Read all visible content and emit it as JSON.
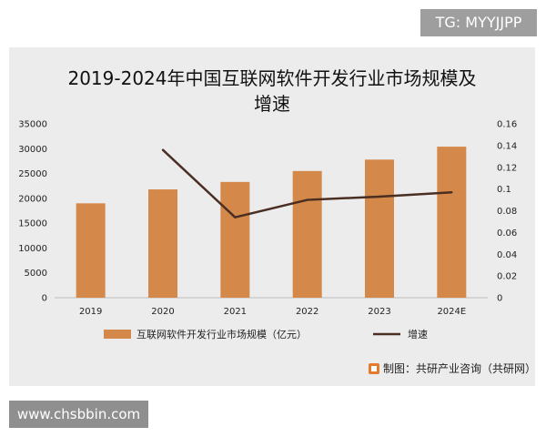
{
  "watermark_top": "TG: MYYJJPP",
  "watermark_bottom": "www.chsbbin.com",
  "source": "制图：共研产业咨询（共研网）",
  "colors": {
    "bar": "#d4894a",
    "line": "#4a2e22",
    "panel": "#ececec",
    "source_logo": "#e47a2c"
  },
  "chart_data": {
    "type": "bar",
    "title_lines": [
      "2019-2024年中国互联网软件开发行业市场规模及",
      "增速"
    ],
    "categories": [
      "2019",
      "2020",
      "2021",
      "2022",
      "2023",
      "2024E"
    ],
    "series": [
      {
        "name": "互联网软件开发行业市场规模（亿元）",
        "type": "bar",
        "axis": "left",
        "values": [
          19000,
          21800,
          23300,
          25500,
          27800,
          30400
        ]
      },
      {
        "name": "增速",
        "type": "line",
        "axis": "right",
        "values": [
          null,
          0.136,
          0.074,
          0.09,
          0.093,
          0.097
        ]
      }
    ],
    "ylim_left": [
      0,
      35000
    ],
    "yticks_left": [
      "0",
      "5000",
      "10000",
      "15000",
      "20000",
      "25000",
      "30000",
      "35000"
    ],
    "ylim_right": [
      0,
      0.16
    ],
    "yticks_right": [
      "0",
      "0.02",
      "0.04",
      "0.06",
      "0.08",
      "0.1",
      "0.12",
      "0.14",
      "0.16"
    ],
    "grid": false,
    "legend_position": "bottom"
  }
}
